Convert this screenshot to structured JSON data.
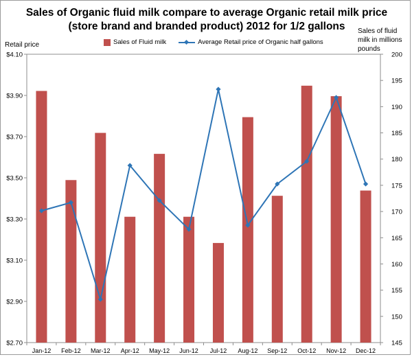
{
  "chart_data": {
    "type": "bar+line",
    "title_lines": [
      "Sales of Organic fluid milk compare to average Organic retail milk price",
      "(store brand and branded product) 2012  for 1/2 gallons"
    ],
    "categories": [
      "Jan-12",
      "Feb-12",
      "Mar-12",
      "Apr-12",
      "May-12",
      "Jun-12",
      "Jul-12",
      "Aug-12",
      "Sep-12",
      "Oct-12",
      "Nov-12",
      "Dec-12"
    ],
    "series": [
      {
        "name": "Sales of Fluid milk",
        "type": "bar",
        "axis": "right",
        "color": "#c0504d",
        "values": [
          193,
          176,
          185,
          169,
          181,
          169,
          164,
          188,
          173,
          194,
          192,
          174
        ]
      },
      {
        "name": "Average Retail price of Organic half gallons",
        "type": "line",
        "axis": "left",
        "color": "#2e75b6",
        "values": [
          3.34,
          3.38,
          2.91,
          3.56,
          3.39,
          3.25,
          3.93,
          3.27,
          3.47,
          3.58,
          3.89,
          3.47
        ]
      }
    ],
    "y_left": {
      "label": "Retail price",
      "min": 2.7,
      "max": 4.1,
      "ticks": [
        "$2.70",
        "$2.90",
        "$3.10",
        "$3.30",
        "$3.50",
        "$3.70",
        "$3.90",
        "$4.10"
      ]
    },
    "y_right": {
      "label_lines": [
        "Sales of fluid",
        "milk in millions",
        "pounds"
      ],
      "min": 145,
      "max": 200,
      "ticks": [
        "145",
        "150",
        "155",
        "160",
        "165",
        "170",
        "175",
        "180",
        "185",
        "190",
        "195",
        "200"
      ]
    },
    "legend_position": "top"
  }
}
